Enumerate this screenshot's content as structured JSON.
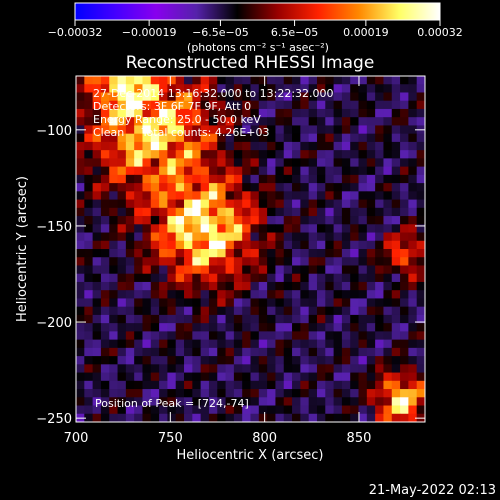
{
  "chart_data": {
    "type": "heatmap",
    "title": "Reconstructed RHESSI Image",
    "xlabel": "Heliocentric X (arcsec)",
    "ylabel": "Heliocentric Y (arcsec)",
    "xlim": [
      700,
      885
    ],
    "ylim": [
      -252,
      -72
    ],
    "x_ticks": [
      {
        "value": 700,
        "label": "700"
      },
      {
        "value": 750,
        "label": "750"
      },
      {
        "value": 800,
        "label": "800"
      },
      {
        "value": 850,
        "label": "850"
      }
    ],
    "y_ticks": [
      {
        "value": -100,
        "label": "−100"
      },
      {
        "value": -150,
        "label": "−150"
      },
      {
        "value": -200,
        "label": "−200"
      },
      {
        "value": -250,
        "label": "−250"
      }
    ],
    "colorbar": {
      "range": [
        -0.00032,
        0.00032
      ],
      "tick_values": [
        -0.00032,
        -0.00019,
        -6.5e-05,
        6.5e-05,
        0.00019,
        0.00032
      ],
      "tick_labels": [
        "−0.00032",
        "−0.00019",
        "−6.5e−05",
        "6.5e−05",
        "0.00019",
        "0.00032"
      ],
      "units_label": "(photons cm⁻² s⁻¹ asec⁻²)",
      "colormap": [
        "#0000ff",
        "#4400ff",
        "#8800ee",
        "#5522aa",
        "#000000",
        "#990000",
        "#ff2200",
        "#ff8800",
        "#ffff66",
        "#ffffff"
      ]
    },
    "image": {
      "grid": [
        42,
        42
      ],
      "sources": [
        {
          "x": 740,
          "y": -100,
          "label": "diffuse bright region upper-left"
        },
        {
          "x": 724,
          "y": -74,
          "label": "peak"
        },
        {
          "x": 768,
          "y": -152,
          "label": "ring-shaped bright region centre"
        },
        {
          "x": 872,
          "y": -240,
          "label": "bright corner source lower-right"
        },
        {
          "x": 875,
          "y": -165,
          "label": "moderate source right edge"
        }
      ],
      "peak_intensity": 0.00032
    },
    "annotations": [
      "27-Dec-2014 13:16:32.000 to 13:22:32.000",
      "Detectors: 3F 6F 7F 9F, Att 0",
      "Energy Range: 25.0 - 50.0 keV",
      "Clean     Total counts: 4.26E+03"
    ],
    "peak_annotation": "Position of Peak = [724,-74]",
    "footer_date": "21-May-2022 02:13"
  }
}
